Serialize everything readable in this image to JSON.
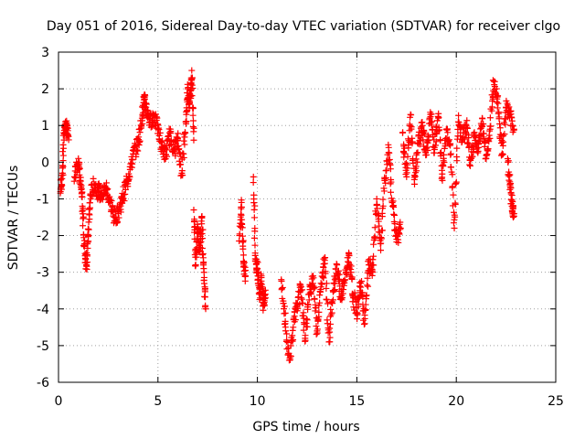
{
  "chart_data": {
    "type": "scatter",
    "title": "Day 051 of 2016, Sidereal Day-to-day VTEC variation (SDTVAR) for receiver clgo",
    "xlabel": "GPS time / hours",
    "ylabel": "SDTVAR / TECUs",
    "xlim": [
      0,
      25
    ],
    "ylim": [
      -6,
      3
    ],
    "xticks": [
      0,
      5,
      10,
      15,
      20,
      25
    ],
    "yticks": [
      -6,
      -5,
      -4,
      -3,
      -2,
      -1,
      0,
      1,
      2,
      3
    ],
    "grid": true,
    "marker": "+",
    "marker_color": "#ff0000",
    "series": [
      {
        "name": "SDTVAR",
        "segments": [
          {
            "x": [
              0.1,
              0.2,
              0.3,
              0.4,
              0.5
            ],
            "y": [
              -0.8,
              -0.3,
              1.0,
              0.9,
              0.7
            ]
          },
          {
            "x": [
              0.8,
              1.0,
              1.1,
              1.2,
              1.3,
              1.4,
              1.5,
              1.6,
              1.8,
              2.0,
              2.2,
              2.4,
              2.6,
              2.8,
              3.0,
              3.2,
              3.4,
              3.6,
              3.8,
              4.0,
              4.2,
              4.3,
              4.4,
              4.6,
              4.8,
              5.0,
              5.2,
              5.4,
              5.6,
              5.8,
              6.0,
              6.2,
              6.4,
              6.5,
              6.6,
              6.7,
              6.8
            ],
            "y": [
              -0.4,
              0.1,
              -0.5,
              -1.2,
              -2.3,
              -2.8,
              -2.0,
              -0.9,
              -0.6,
              -0.8,
              -0.9,
              -0.7,
              -1.1,
              -1.5,
              -1.4,
              -1.0,
              -0.6,
              -0.2,
              0.3,
              0.5,
              1.2,
              1.7,
              1.5,
              1.1,
              1.3,
              0.9,
              0.4,
              0.2,
              0.8,
              0.3,
              0.6,
              -0.3,
              1.1,
              2.0,
              1.6,
              2.5,
              0.6
            ]
          },
          {
            "x": [
              6.8,
              6.9,
              7.0,
              7.1,
              7.2,
              7.3,
              7.4
            ],
            "y": [
              -1.3,
              -2.8,
              -1.8,
              -2.4,
              -1.5,
              -2.9,
              -4.0
            ]
          },
          {
            "x": [
              9.1,
              9.2,
              9.3,
              9.4
            ],
            "y": [
              -2.0,
              -1.1,
              -2.7,
              -3.1
            ]
          },
          {
            "x": [
              9.8,
              9.9,
              10.0,
              10.1,
              10.2,
              10.3,
              10.4
            ],
            "y": [
              -0.4,
              -2.7,
              -2.9,
              -3.6,
              -3.1,
              -3.9,
              -3.6
            ]
          },
          {
            "x": [
              11.2,
              11.4,
              11.6,
              11.8,
              12.0,
              12.2,
              12.4,
              12.6,
              12.8,
              13.0,
              13.2,
              13.4,
              13.6,
              13.8,
              14.0,
              14.2,
              14.4,
              14.6,
              14.8,
              15.0,
              15.2,
              15.4,
              15.6,
              15.8,
              16.0,
              16.2,
              16.4,
              16.6,
              16.8,
              17.0,
              17.2
            ],
            "y": [
              -3.2,
              -4.4,
              -5.4,
              -4.5,
              -3.9,
              -3.4,
              -4.8,
              -3.6,
              -3.1,
              -4.6,
              -3.4,
              -2.6,
              -4.9,
              -3.5,
              -2.8,
              -3.7,
              -3.2,
              -2.5,
              -3.6,
              -4.1,
              -3.3,
              -4.4,
              -2.8,
              -3.0,
              -1.0,
              -2.4,
              -0.5,
              0.4,
              -1.2,
              -2.1,
              -1.8
            ]
          },
          {
            "x": [
              17.3,
              17.5,
              17.7,
              17.9,
              18.1,
              18.3,
              18.5,
              18.7,
              18.9,
              19.1,
              19.3,
              19.5,
              19.7,
              19.9,
              20.1,
              20.3,
              20.5,
              20.7,
              20.9,
              21.1,
              21.3,
              21.5,
              21.7,
              21.9,
              22.1,
              22.3,
              22.5,
              22.7,
              22.9
            ],
            "y": [
              0.8,
              -0.4,
              1.3,
              -0.6,
              0.5,
              1.0,
              0.2,
              1.3,
              0.4,
              1.2,
              -0.5,
              0.9,
              0.5,
              -1.8,
              1.1,
              0.6,
              1.0,
              -0.1,
              0.7,
              0.3,
              1.2,
              0.1,
              0.9,
              2.2,
              1.6,
              0.2,
              1.5,
              1.3,
              0.9
            ]
          },
          {
            "x": [
              22.6,
              22.7,
              22.8,
              22.9
            ],
            "y": [
              0.0,
              -0.6,
              -1.2,
              -1.4
            ]
          }
        ]
      }
    ]
  }
}
